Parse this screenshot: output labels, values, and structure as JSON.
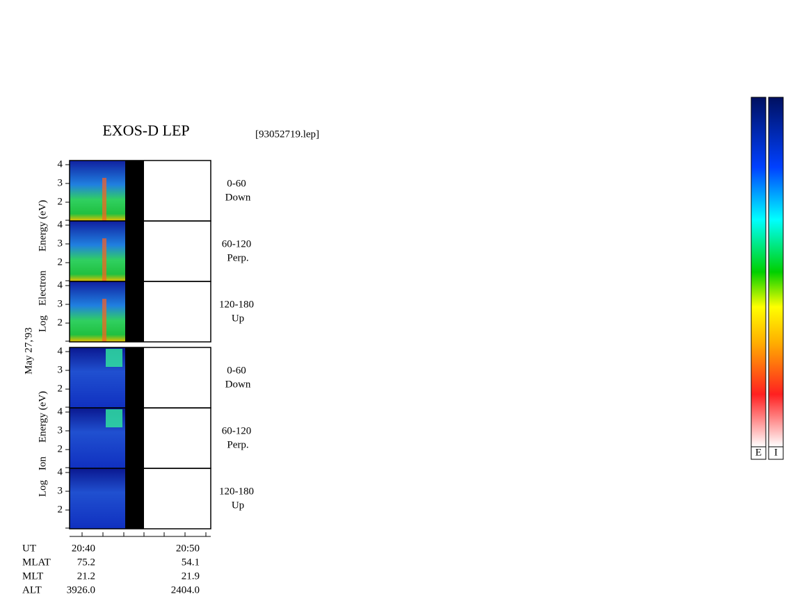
{
  "header": {
    "title": "EXOS-D LEP",
    "file": "[93052719.lep]"
  },
  "date": "May 27,'93",
  "electron_axis_label": [
    "Log",
    "Electron",
    "Energy (eV)"
  ],
  "ion_axis_label": [
    "Log",
    "Ion",
    "Energy (eV)"
  ],
  "panels": [
    {
      "species": "electron",
      "range": "0-60",
      "direction": "Down",
      "yticks": [
        4,
        3,
        2
      ]
    },
    {
      "species": "electron",
      "range": "60-120",
      "direction": "Perp.",
      "yticks": [
        4,
        3,
        2
      ]
    },
    {
      "species": "electron",
      "range": "120-180",
      "direction": "Up",
      "yticks": [
        4,
        3,
        2
      ]
    },
    {
      "species": "ion",
      "range": "0-60",
      "direction": "Down",
      "yticks": [
        4,
        3,
        2
      ]
    },
    {
      "species": "ion",
      "range": "60-120",
      "direction": "Perp.",
      "yticks": [
        4,
        3,
        2
      ]
    },
    {
      "species": "ion",
      "range": "120-180",
      "direction": "Up",
      "yticks": [
        4,
        3,
        2
      ]
    }
  ],
  "footer": {
    "rows": [
      [
        "UT",
        "20:40",
        "20:50"
      ],
      [
        "MLAT",
        "75.2",
        "54.1"
      ],
      [
        "MLT",
        "21.2",
        "21.9"
      ],
      [
        "ALT",
        "3926.0",
        "2404.0"
      ]
    ]
  },
  "colorbars": [
    "E",
    "I"
  ]
}
